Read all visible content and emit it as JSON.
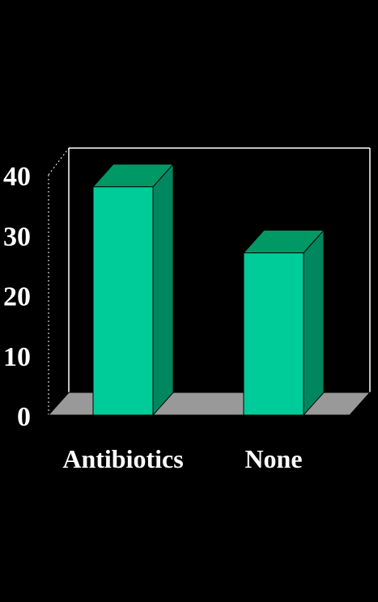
{
  "chart_data": {
    "type": "bar",
    "categories": [
      "Antibiotics",
      "None"
    ],
    "values": [
      38,
      27
    ],
    "ylim": [
      0,
      40
    ],
    "yticks": [
      0,
      10,
      20,
      30,
      40
    ],
    "three_d": true,
    "grid": false,
    "legend": "none",
    "colors": {
      "bar_front": "#00CC99",
      "bar_top": "#009966",
      "bar_side": "#00875F",
      "floor": "#999999",
      "frame": "#FFFFFF",
      "background": "#000000",
      "text": "#FFFFFF"
    }
  }
}
